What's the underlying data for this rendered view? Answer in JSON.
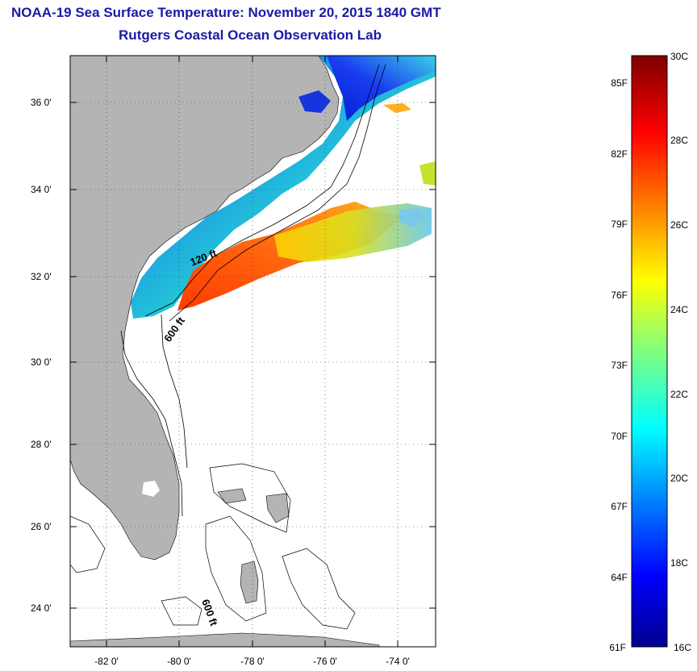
{
  "header": {
    "title": "NOAA-19 Sea Surface Temperature:  November 20, 2015 1840 GMT",
    "subtitle": "Rutgers Coastal Ocean Observation Lab"
  },
  "map": {
    "lat_labels": [
      "36 0'",
      "34 0'",
      "32 0'",
      "30 0'",
      "28 0'",
      "26 0'",
      "24 0'"
    ],
    "lon_labels": [
      "-82 0'",
      "-80 0'",
      "-78 0'",
      "-76 0'",
      "-74 0'"
    ],
    "contour_labels": [
      "120 ft",
      "600 ft",
      "600 ft"
    ],
    "land_color": "#b4b4b4",
    "grid": "dotted"
  },
  "colorbar": {
    "celsius_labels": [
      "30C",
      "28C",
      "26C",
      "24C",
      "22C",
      "20C",
      "18C",
      "16C"
    ],
    "fahrenheit_labels": [
      "85F",
      "82F",
      "79F",
      "76F",
      "73F",
      "70F",
      "67F",
      "64F",
      "61F"
    ],
    "min_c": 16,
    "max_c": 30,
    "colormap": "jet"
  }
}
